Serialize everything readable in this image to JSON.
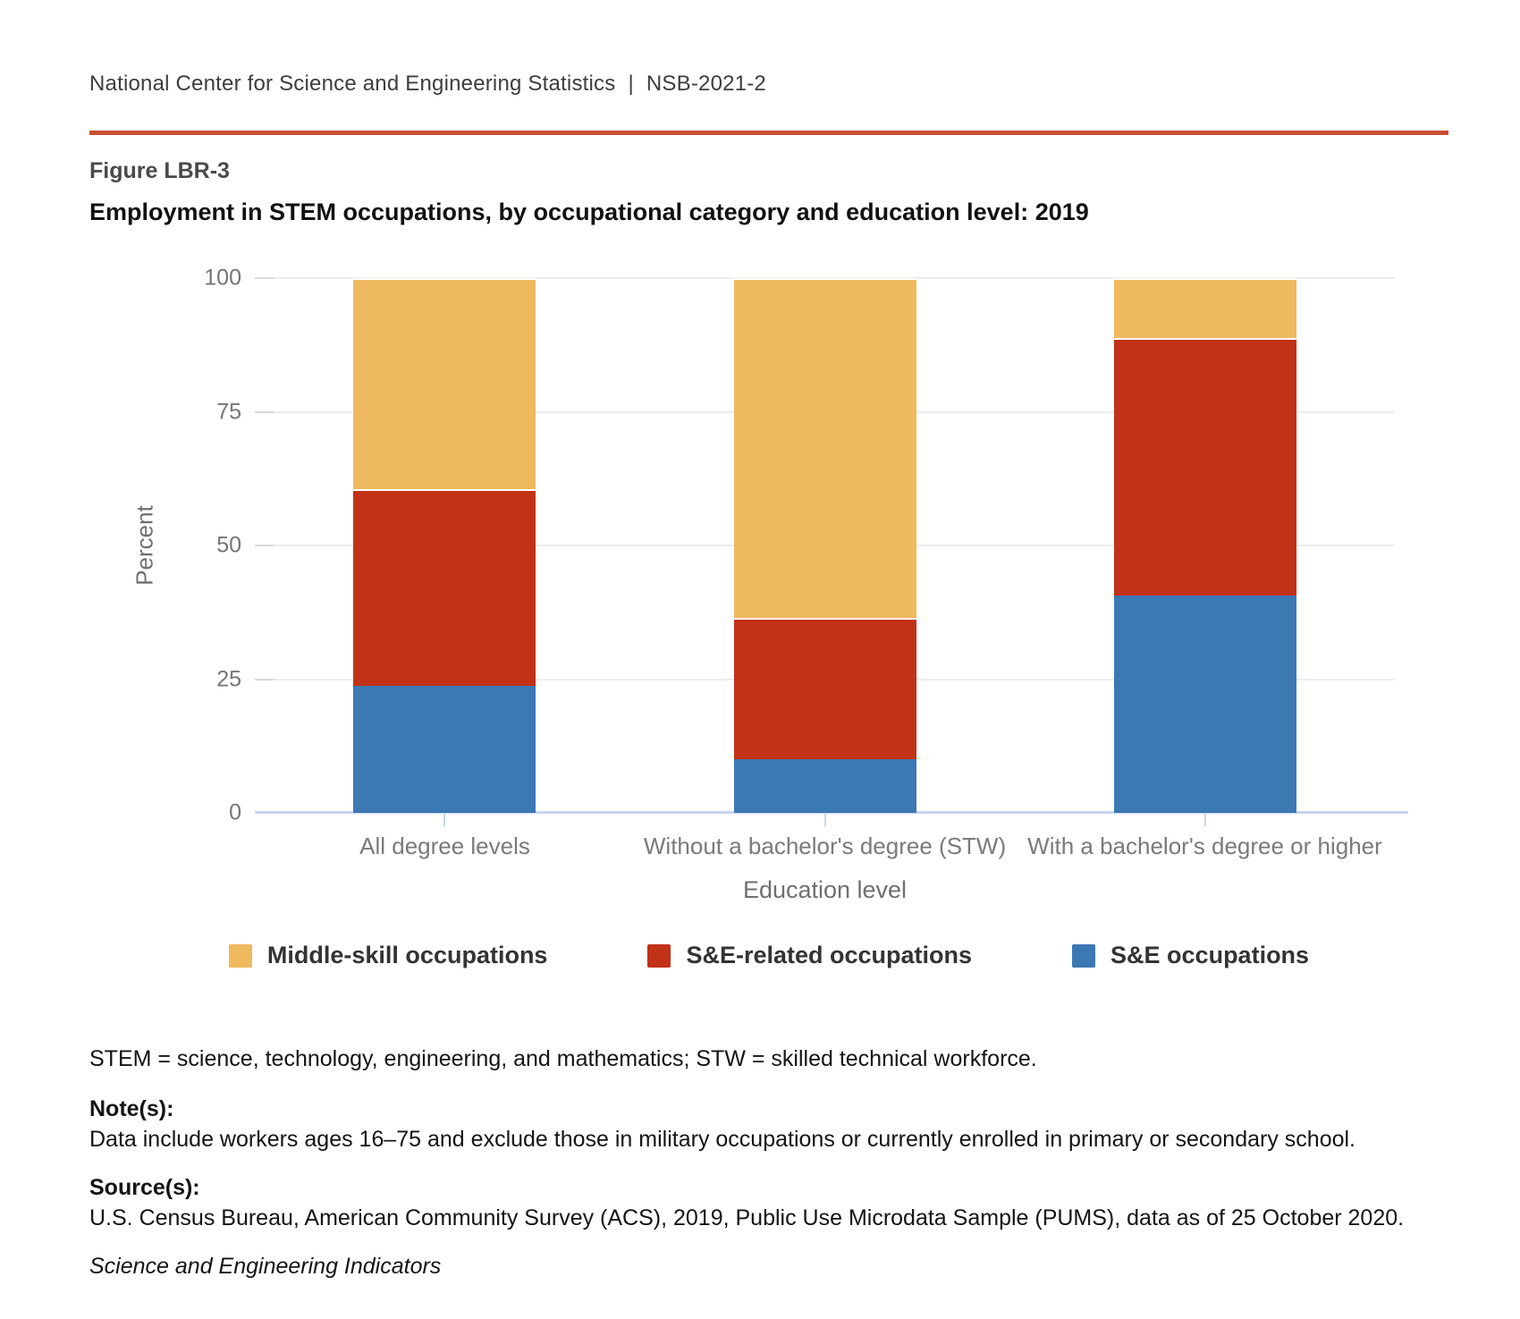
{
  "header": {
    "agency": "National Center for Science and Engineering Statistics",
    "separator": "|",
    "report_id": "NSB-2021-2"
  },
  "figure": {
    "label": "Figure LBR-3",
    "title": "Employment in STEM occupations, by occupational category and education level: 2019"
  },
  "chart_data": {
    "type": "bar",
    "stacked": true,
    "title": "Employment in STEM occupations, by occupational category and education level: 2019",
    "categories": [
      "All degree levels",
      "Without a bachelor's degree (STW)",
      "With a bachelor's degree or higher"
    ],
    "series": [
      {
        "name": "S&E occupations",
        "color": "#3C78B3",
        "values": [
          23.7,
          10.0,
          40.6
        ]
      },
      {
        "name": "S&E-related occupations",
        "color": "#C23217",
        "values": [
          36.8,
          26.4,
          48.2
        ]
      },
      {
        "name": "Middle-skill occupations",
        "color": "#EFB95F",
        "values": [
          39.5,
          63.6,
          11.2
        ]
      }
    ],
    "legend_order": [
      "Middle-skill occupations",
      "S&E-related occupations",
      "S&E occupations"
    ],
    "legend_position": "bottom",
    "xlabel": "Education level",
    "ylabel": "Percent",
    "ylim": [
      0,
      100
    ],
    "yticks": [
      0,
      25,
      50,
      75,
      100
    ],
    "grid": true
  },
  "colors": {
    "accent_rule": "#C84E33",
    "axis_line": "#C9D4EC",
    "gridline": "#ECECEC",
    "tick_label": "#757575"
  },
  "footer": {
    "stem_note": "STEM = science, technology, engineering, and mathematics; STW = skilled technical workforce.",
    "notes_heading": "Note(s):",
    "notes_text": "Data include workers ages 16–75 and exclude those in military occupations or currently enrolled in primary or secondary school.",
    "sources_heading": "Source(s):",
    "sources_text": "U.S. Census Bureau, American Community Survey (ACS), 2019, Public Use Microdata Sample (PUMS), data as of 25 October 2020.",
    "publication": "Science and Engineering Indicators"
  }
}
